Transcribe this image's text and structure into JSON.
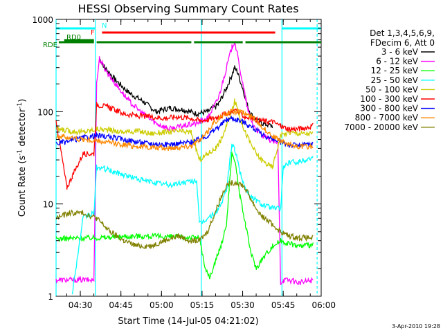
{
  "chart_data": {
    "type": "line",
    "title": "HESSI Observing Summary Count Rates",
    "xlabel": "Start Time (14-Jul-05 04:21:02)",
    "ylabel_main": "Count Rate (s",
    "ylabel_sup1": "-1",
    "ylabel_mid": " detector",
    "ylabel_sup2": "-1",
    "ylabel_end": ")",
    "y_scale": "log",
    "ylim": [
      1,
      1000
    ],
    "xlim_minutes_after_start": [
      0,
      98
    ],
    "x_ticks": [
      {
        "label": "04:30",
        "minutes": 8.97
      },
      {
        "label": "04:45",
        "minutes": 23.97
      },
      {
        "label": "05:00",
        "minutes": 38.97
      },
      {
        "label": "05:15",
        "minutes": 53.97
      },
      {
        "label": "05:30",
        "minutes": 68.97
      },
      {
        "label": "05:45",
        "minutes": 83.97
      },
      {
        "label": "06:00",
        "minutes": 98.97
      }
    ],
    "y_ticks": [
      {
        "label": "1",
        "value": 1
      },
      {
        "label": "10",
        "value": 10
      },
      {
        "label": "100",
        "value": 100
      },
      {
        "label": "1000",
        "value": 1000
      }
    ],
    "legend": {
      "header_line1": "Det 1,3,4,5,6,9,",
      "header_line2": "FDecim 6, Att 0",
      "placement": "right"
    },
    "series": [
      {
        "name": "3 - 6 keV",
        "color": "#000000",
        "x": [
          15,
          16,
          18,
          22,
          27,
          32,
          37,
          42,
          47,
          52,
          56,
          60,
          63,
          65,
          66,
          67,
          69,
          71,
          73,
          76,
          80,
          83,
          86,
          90
        ],
        "y": [
          null,
          380,
          300,
          220,
          160,
          130,
          100,
          110,
          105,
          95,
          100,
          120,
          180,
          250,
          300,
          270,
          180,
          110,
          85,
          75,
          70,
          null,
          null,
          null
        ]
      },
      {
        "name": "6 - 12 keV",
        "color": "#ff00ff",
        "x": [
          0,
          14,
          15,
          16,
          18,
          22,
          27,
          32,
          37,
          42,
          47,
          52,
          56,
          60,
          63,
          65,
          66,
          67,
          69,
          71,
          73,
          76,
          80,
          82,
          83,
          84,
          86,
          90,
          95
        ],
        "y": [
          1.5,
          1.5,
          200,
          380,
          290,
          200,
          130,
          95,
          75,
          65,
          70,
          75,
          85,
          140,
          300,
          500,
          580,
          420,
          200,
          100,
          70,
          55,
          48,
          45,
          1.4,
          1.5,
          1.5,
          1.4,
          1.5
        ]
      },
      {
        "name": "12 - 25 keV",
        "color": "#00ff00",
        "x": [
          0,
          15,
          30,
          45,
          53,
          55,
          57,
          59,
          61,
          63,
          64,
          65,
          66,
          67,
          68,
          70,
          72,
          74,
          76,
          80,
          83,
          85,
          90,
          95
        ],
        "y": [
          4.2,
          4.3,
          4.5,
          4.4,
          4.3,
          2.0,
          1.6,
          2.5,
          3.5,
          6.0,
          15,
          35,
          30,
          20,
          12,
          6,
          3,
          2,
          2.5,
          3.5,
          4.0,
          3.8,
          3.5,
          3.6
        ]
      },
      {
        "name": "25 - 50 keV",
        "color": "#00ffff",
        "x": [
          0,
          6,
          10,
          14,
          15,
          18,
          22,
          27,
          32,
          37,
          42,
          47,
          52,
          53,
          56,
          59,
          61,
          63,
          64,
          65,
          66,
          67,
          68,
          69,
          70,
          72,
          74,
          76,
          80,
          83,
          84,
          86,
          90,
          95
        ],
        "y": [
          null,
          1.1,
          7,
          8,
          25,
          24,
          22,
          20,
          18,
          17,
          16,
          17,
          18,
          6,
          7,
          8,
          10,
          14,
          25,
          45,
          40,
          30,
          22,
          18,
          15,
          12,
          11,
          10,
          9,
          9,
          25,
          28,
          29,
          32
        ]
      },
      {
        "name": "50 - 100 keV",
        "color": "#cccc00",
        "x": [
          0,
          5,
          10,
          15,
          20,
          25,
          30,
          35,
          40,
          45,
          50,
          53,
          56,
          59,
          61,
          63,
          65,
          66,
          67,
          68,
          70,
          72,
          74,
          76,
          78,
          80,
          83,
          86,
          90,
          95
        ],
        "y": [
          65,
          62,
          60,
          65,
          63,
          60,
          62,
          58,
          60,
          61,
          60,
          30,
          35,
          40,
          50,
          70,
          100,
          130,
          110,
          85,
          60,
          45,
          35,
          30,
          27,
          25,
          55,
          60,
          58,
          58
        ]
      },
      {
        "name": "100 - 300 keV",
        "color": "#ff0000",
        "x": [
          0,
          4,
          6,
          10,
          14,
          15,
          20,
          25,
          30,
          35,
          40,
          45,
          50,
          53,
          56,
          58,
          61,
          63,
          65,
          66,
          67,
          68,
          70,
          72,
          74,
          76,
          78,
          80,
          83,
          86,
          90,
          95
        ],
        "y": [
          80,
          15,
          20,
          35,
          35,
          120,
          110,
          95,
          90,
          88,
          85,
          88,
          85,
          80,
          82,
          85,
          90,
          95,
          100,
          105,
          100,
          95,
          88,
          85,
          82,
          80,
          78,
          78,
          70,
          65,
          65,
          70
        ]
      },
      {
        "name": "300 - 800 keV",
        "color": "#0000ff",
        "x": [
          0,
          5,
          10,
          15,
          20,
          25,
          30,
          35,
          40,
          45,
          50,
          53,
          56,
          58,
          61,
          63,
          65,
          67,
          69,
          71,
          73,
          75,
          77,
          80,
          83,
          86,
          90,
          95
        ],
        "y": [
          45,
          48,
          52,
          55,
          53,
          50,
          47,
          45,
          44,
          45,
          47,
          50,
          55,
          62,
          72,
          82,
          85,
          82,
          78,
          72,
          66,
          60,
          55,
          50,
          47,
          44,
          43,
          45
        ]
      },
      {
        "name": "800 - 7000 keV",
        "color": "#ff8800",
        "x": [
          0,
          5,
          10,
          15,
          20,
          25,
          30,
          35,
          40,
          45,
          50,
          53,
          56,
          58,
          61,
          63,
          65,
          67,
          69,
          71,
          73,
          75,
          77,
          80,
          83,
          86,
          90,
          95
        ],
        "y": [
          55,
          52,
          50,
          48,
          46,
          44,
          42,
          41,
          40,
          41,
          43,
          48,
          60,
          75,
          88,
          95,
          100,
          100,
          98,
          92,
          85,
          75,
          65,
          55,
          48,
          44,
          42,
          42
        ]
      },
      {
        "name": "7000 - 20000 keV",
        "color": "#808000",
        "x": [
          0,
          5,
          10,
          15,
          20,
          25,
          30,
          35,
          40,
          45,
          50,
          53,
          56,
          58,
          61,
          63,
          65,
          67,
          69,
          71,
          73,
          75,
          77,
          80,
          83,
          86,
          90,
          95
        ],
        "y": [
          7,
          8,
          8,
          7,
          5,
          4,
          3.5,
          3.5,
          4,
          4.5,
          4,
          4,
          5,
          7,
          12,
          16,
          17,
          17,
          16,
          13,
          10,
          8,
          7,
          6,
          5,
          4.5,
          4.3,
          4.3
        ]
      }
    ],
    "flag_bars": [
      {
        "label": "N",
        "color": "#00ffff",
        "segments_minutes": [
          [
            0,
            14.5
          ],
          [
            83.5,
            98
          ]
        ]
      },
      {
        "label": "F",
        "color": "#ff0000",
        "segments_minutes": [
          [
            17,
            81
          ]
        ]
      },
      {
        "label": "RD0",
        "color": "#008000",
        "segments_minutes": [
          [
            3,
            14
          ]
        ]
      },
      {
        "label": "RDE",
        "color": "#008000",
        "segments_minutes": [
          [
            1,
            14
          ],
          [
            15,
            50
          ],
          [
            51,
            69
          ],
          [
            70,
            98
          ]
        ]
      }
    ],
    "vertical_markers_minutes": [
      {
        "minutes": 0,
        "color": "#00ffff",
        "style": "solid"
      },
      {
        "minutes": 14.5,
        "color": "#00ffff",
        "style": "solid"
      },
      {
        "minutes": 53.7,
        "color": "#00ffff",
        "style": "solid"
      },
      {
        "minutes": 83.5,
        "color": "#00ffff",
        "style": "solid"
      },
      {
        "minutes": 96.5,
        "color": "#00ffff",
        "style": "dashed"
      }
    ]
  },
  "footer": {
    "date_stamp": "3-Apr-2010 19:28"
  }
}
